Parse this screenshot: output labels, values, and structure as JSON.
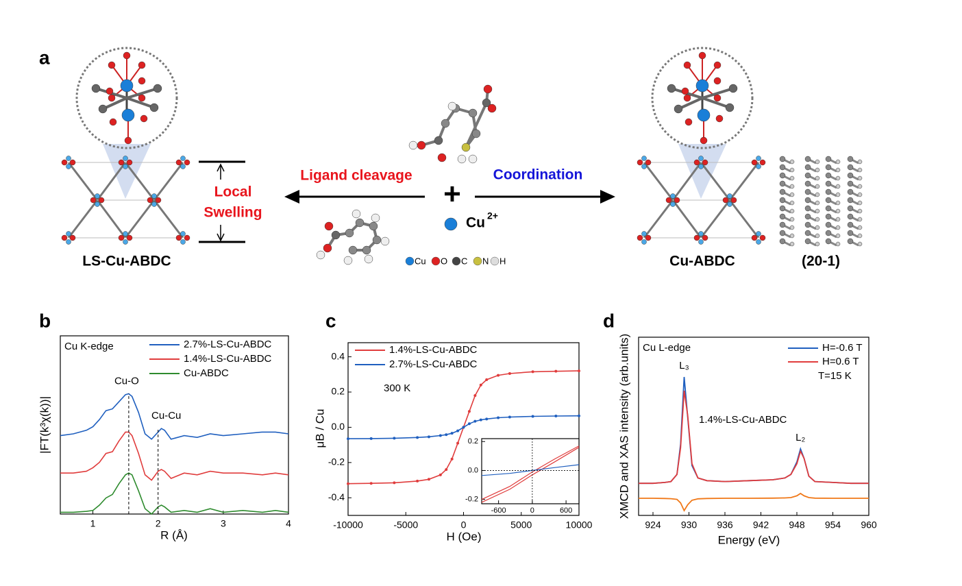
{
  "panel_labels": [
    "a",
    "b",
    "c",
    "d"
  ],
  "scheme": {
    "left_label": "LS-Cu-ABDC",
    "swelling": [
      "Local",
      "Swelling"
    ],
    "cleavage": "Ligand cleavage",
    "coordination": "Coordination",
    "plus": "+",
    "ion": "Cu",
    "ion_charge": "2+",
    "legend": [
      "Cu",
      "O",
      "C",
      "N",
      "H"
    ],
    "right_label": "Cu-ABDC",
    "facet": "(20-1)"
  },
  "chart_data": [
    {
      "type": "line",
      "text": "Cu K-edge",
      "xlabel": "R (Å)",
      "ylabel": "|FT(k³χ(k))|",
      "x": [
        0.5,
        0.7,
        0.9,
        1.0,
        1.1,
        1.2,
        1.3,
        1.4,
        1.5,
        1.55,
        1.6,
        1.7,
        1.8,
        1.9,
        2.0,
        2.05,
        2.1,
        2.2,
        2.4,
        2.6,
        2.8,
        3.0,
        3.3,
        3.6,
        3.8,
        4.0
      ],
      "xlim": [
        0.5,
        4
      ],
      "xticks": [
        1,
        2,
        3,
        4
      ],
      "ylim": [
        0,
        10
      ],
      "legend": "upper right",
      "series": [
        {
          "name": "2.7%-LS-Cu-ABDC",
          "color": "#1f5fbf",
          "values": [
            4.4,
            4.5,
            4.7,
            4.9,
            5.3,
            5.8,
            5.9,
            6.3,
            6.7,
            6.75,
            6.6,
            5.7,
            4.5,
            4.2,
            4.6,
            4.8,
            4.7,
            4.2,
            4.4,
            4.3,
            4.5,
            4.4,
            4.5,
            4.6,
            4.6,
            4.5
          ]
        },
        {
          "name": "1.4%-LS-Cu-ABDC",
          "color": "#e03c3c",
          "values": [
            2.3,
            2.3,
            2.4,
            2.6,
            2.9,
            3.4,
            3.5,
            4.1,
            4.6,
            4.6,
            4.4,
            3.4,
            2.2,
            1.9,
            2.4,
            2.5,
            2.4,
            2.0,
            2.3,
            2.2,
            2.4,
            2.3,
            2.3,
            2.2,
            2.3,
            2.2
          ]
        },
        {
          "name": "Cu-ABDC",
          "color": "#2e8b2e",
          "values": [
            0.1,
            0.1,
            0.15,
            0.2,
            0.5,
            0.9,
            1.1,
            1.7,
            2.2,
            2.3,
            2.2,
            1.3,
            0.3,
            0.0,
            0.4,
            0.5,
            0.4,
            0.1,
            0.2,
            0.1,
            0.3,
            0.1,
            0.2,
            0.1,
            0.2,
            0.1
          ]
        }
      ],
      "annotations": [
        {
          "text": "Cu-O",
          "x": 1.55,
          "y": 6.75
        },
        {
          "text": "Cu-Cu",
          "x": 2.0,
          "y": 4.8
        }
      ]
    },
    {
      "type": "line",
      "text": "300 K",
      "xlabel": "H (Oe)",
      "ylabel": "μB / Cu",
      "x": [
        -10000,
        -8000,
        -6000,
        -4000,
        -3000,
        -2000,
        -1500,
        -1000,
        -500,
        0,
        500,
        1000,
        1500,
        2000,
        3000,
        4000,
        6000,
        8000,
        10000
      ],
      "xlim": [
        -10000,
        10000
      ],
      "xticks": [
        -10000,
        -5000,
        0,
        5000,
        10000
      ],
      "ylim": [
        -0.5,
        0.48
      ],
      "yticks": [
        -0.4,
        -0.2,
        {
          "value": 0,
          "label": "0.0"
        },
        0.2,
        0.4
      ],
      "legend": "upper left",
      "series": [
        {
          "name": "1.4%-LS-Cu-ABDC",
          "color": "#e03c3c",
          "values": [
            -0.32,
            -0.318,
            -0.315,
            -0.305,
            -0.295,
            -0.27,
            -0.24,
            -0.18,
            -0.09,
            0.0,
            0.09,
            0.18,
            0.24,
            0.27,
            0.295,
            0.305,
            0.315,
            0.318,
            0.32
          ]
        },
        {
          "name": "2.7%-LS-Cu-ABDC",
          "color": "#1f5fbf",
          "values": [
            -0.065,
            -0.064,
            -0.062,
            -0.058,
            -0.054,
            -0.047,
            -0.042,
            -0.034,
            -0.02,
            0,
            0.02,
            0.034,
            0.042,
            0.047,
            0.054,
            0.058,
            0.062,
            0.064,
            0.065
          ]
        }
      ],
      "inset": {
        "x": [
          -900,
          -400,
          0,
          400,
          830
        ],
        "xlim": [
          -900,
          830
        ],
        "xticks": [
          -600,
          0,
          600
        ],
        "ylim": [
          -0.23,
          0.22
        ],
        "yticks": [
          -0.2,
          {
            "value": 0,
            "label": "0.0"
          },
          0.2
        ],
        "series": [
          {
            "color": "#e03c3c",
            "values": [
              -0.2,
              -0.11,
              -0.01,
              0.08,
              0.17
            ]
          },
          {
            "color": "#e03c3c",
            "values": [
              -0.22,
              -0.13,
              -0.03,
              0.06,
              0.16
            ]
          },
          {
            "color": "#1f5fbf",
            "values": [
              -0.035,
              -0.02,
              0,
              0.02,
              0.04
            ]
          }
        ]
      }
    },
    {
      "type": "line",
      "text": "Cu L-edge",
      "xlabel": "Energy (eV)",
      "ylabel": "XMCD and XAS intensity (arb.units)",
      "x": [
        921.6,
        924,
        926,
        927,
        928,
        928.6,
        929.2,
        929.8,
        930.5,
        931.5,
        933,
        936,
        940,
        944,
        946,
        947,
        948,
        948.6,
        949.2,
        950,
        951,
        954,
        957,
        960
      ],
      "xlim": [
        921.6,
        960
      ],
      "xticks": [
        924,
        930,
        936,
        942,
        948,
        954,
        960
      ],
      "ylim": [
        0,
        10
      ],
      "legend": "upper right",
      "legend_note": "T=15 K",
      "series": [
        {
          "name": "H=-0.6 T",
          "color": "#1f5fbf",
          "values": [
            1.8,
            1.8,
            1.85,
            1.9,
            2.3,
            4.0,
            7.77,
            5.5,
            2.8,
            2.1,
            1.95,
            1.9,
            1.95,
            2.0,
            2.1,
            2.3,
            3.0,
            3.73,
            3.2,
            2.2,
            1.9,
            1.85,
            1.8,
            1.8
          ]
        },
        {
          "name": "H=0.6 T",
          "color": "#e03c3c",
          "values": [
            1.8,
            1.8,
            1.85,
            1.9,
            2.3,
            3.8,
            7.0,
            5.6,
            2.9,
            2.1,
            1.95,
            1.9,
            1.95,
            2.0,
            2.1,
            2.3,
            2.9,
            3.6,
            3.2,
            2.2,
            1.9,
            1.85,
            1.8,
            1.8
          ]
        },
        {
          "color": "#f07818",
          "values": [
            0.96,
            0.96,
            0.95,
            0.94,
            0.9,
            0.7,
            0.27,
            0.6,
            0.85,
            0.93,
            0.95,
            0.96,
            0.96,
            0.97,
            0.98,
            1.0,
            1.1,
            1.23,
            1.1,
            1.0,
            0.97,
            0.96,
            0.96,
            0.96
          ]
        }
      ],
      "annotations": [
        {
          "text": "L₃",
          "x": 929.2,
          "y": 7.77
        },
        {
          "text": "L₂",
          "x": 948.6,
          "y": 3.73
        }
      ],
      "sample_label": "1.4%-LS-Cu-ABDC"
    }
  ]
}
